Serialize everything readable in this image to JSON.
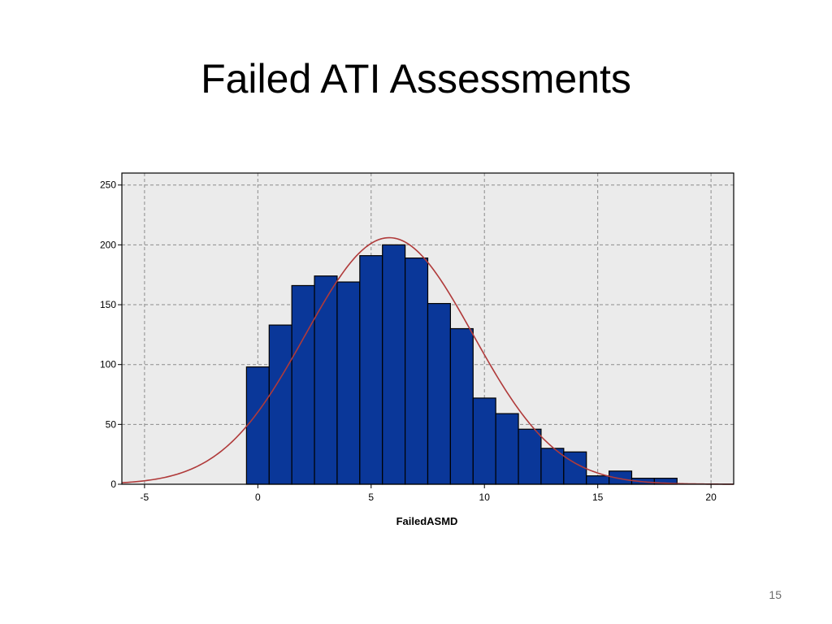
{
  "slide": {
    "title": "Failed ATI Assessments",
    "page_number": "15"
  },
  "chart_data": {
    "type": "bar",
    "subtype": "histogram",
    "title": "",
    "xlabel": "FailedASMD",
    "ylabel": "",
    "xlim": [
      -6,
      21
    ],
    "ylim": [
      0,
      260
    ],
    "xticks": [
      -5,
      0,
      5,
      10,
      15,
      20
    ],
    "yticks": [
      0,
      50,
      100,
      150,
      200,
      250
    ],
    "grid": true,
    "bin_width": 1,
    "bins": [
      {
        "x0": -0.5,
        "x1": 0.5,
        "value": 98
      },
      {
        "x0": 0.5,
        "x1": 1.5,
        "value": 133
      },
      {
        "x0": 1.5,
        "x1": 2.5,
        "value": 166
      },
      {
        "x0": 2.5,
        "x1": 3.5,
        "value": 174
      },
      {
        "x0": 3.5,
        "x1": 4.5,
        "value": 169
      },
      {
        "x0": 4.5,
        "x1": 5.5,
        "value": 191
      },
      {
        "x0": 5.5,
        "x1": 6.5,
        "value": 200
      },
      {
        "x0": 6.5,
        "x1": 7.5,
        "value": 189
      },
      {
        "x0": 7.5,
        "x1": 8.5,
        "value": 151
      },
      {
        "x0": 8.5,
        "x1": 9.5,
        "value": 130
      },
      {
        "x0": 9.5,
        "x1": 10.5,
        "value": 72
      },
      {
        "x0": 10.5,
        "x1": 11.5,
        "value": 59
      },
      {
        "x0": 11.5,
        "x1": 12.5,
        "value": 46
      },
      {
        "x0": 12.5,
        "x1": 13.5,
        "value": 30
      },
      {
        "x0": 13.5,
        "x1": 14.5,
        "value": 27
      },
      {
        "x0": 14.5,
        "x1": 15.5,
        "value": 7
      },
      {
        "x0": 15.5,
        "x1": 16.5,
        "value": 11
      },
      {
        "x0": 16.5,
        "x1": 17.5,
        "value": 5
      },
      {
        "x0": 17.5,
        "x1": 18.5,
        "value": 5
      }
    ],
    "normal_curve": {
      "mean": 5.8,
      "sd": 3.7,
      "peak": 206
    },
    "colors": {
      "bar_fill": "#0a3799",
      "bar_stroke": "#000000",
      "plot_bg": "#ebebeb",
      "grid": "#8c8c8c",
      "curve": "#b03a3a"
    }
  }
}
